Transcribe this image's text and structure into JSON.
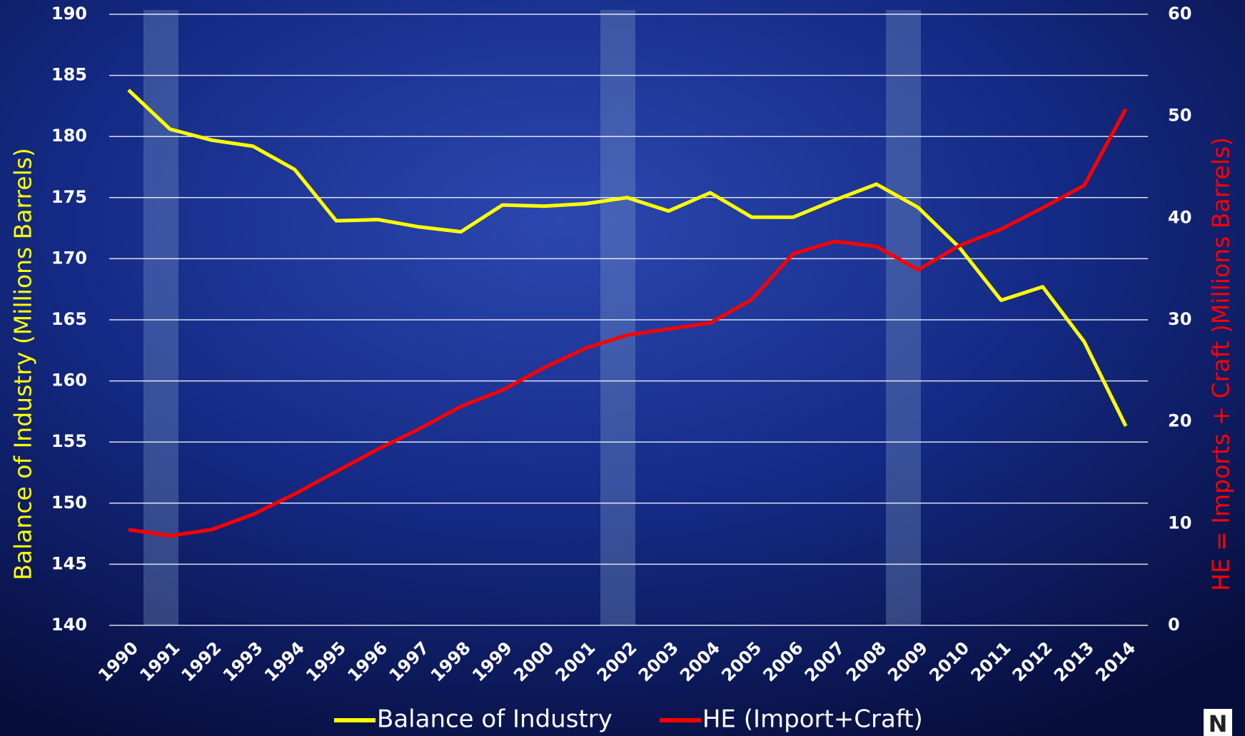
{
  "chart_data": {
    "type": "line",
    "categories": [
      "1990",
      "1991",
      "1992",
      "1993",
      "1994",
      "1995",
      "1996",
      "1997",
      "1998",
      "1999",
      "2000",
      "2001",
      "2002",
      "2003",
      "2004",
      "2005",
      "2006",
      "2007",
      "2008",
      "2009",
      "2010",
      "2011",
      "2012",
      "2013",
      "2014"
    ],
    "series": [
      {
        "name": "Balance of Industry",
        "color": "#ffff00",
        "axis": "y",
        "values": [
          183.8,
          180.6,
          179.7,
          179.2,
          177.3,
          173.1,
          173.2,
          172.6,
          172.2,
          174.4,
          174.3,
          174.5,
          175.0,
          173.9,
          175.4,
          173.4,
          173.4,
          174.8,
          176.1,
          174.2,
          170.9,
          166.6,
          167.7,
          163.2,
          156.3
        ]
      },
      {
        "name": "HE (Import+Craft)",
        "color": "#ff0000",
        "axis": "y2",
        "values": [
          9.4,
          8.8,
          9.4,
          10.9,
          12.9,
          15.1,
          17.3,
          19.3,
          21.5,
          23.1,
          25.3,
          27.2,
          28.5,
          29.1,
          29.7,
          32.0,
          36.5,
          37.7,
          37.2,
          34.9,
          37.3,
          38.9,
          41.0,
          43.2,
          50.7
        ]
      }
    ],
    "y_label": "Balance of Industry (Millions Barrels)",
    "y2_label": "HE = Imports + Craft )Millions Barrels)",
    "ylim": [
      140,
      190
    ],
    "yticks": [
      140,
      145,
      150,
      155,
      160,
      165,
      170,
      175,
      180,
      185,
      190
    ],
    "y2lim": [
      0,
      60
    ],
    "y2ticks": [
      0,
      10,
      20,
      30,
      40,
      50,
      60
    ],
    "grid": true,
    "legend": "bottom",
    "logo": "N"
  }
}
